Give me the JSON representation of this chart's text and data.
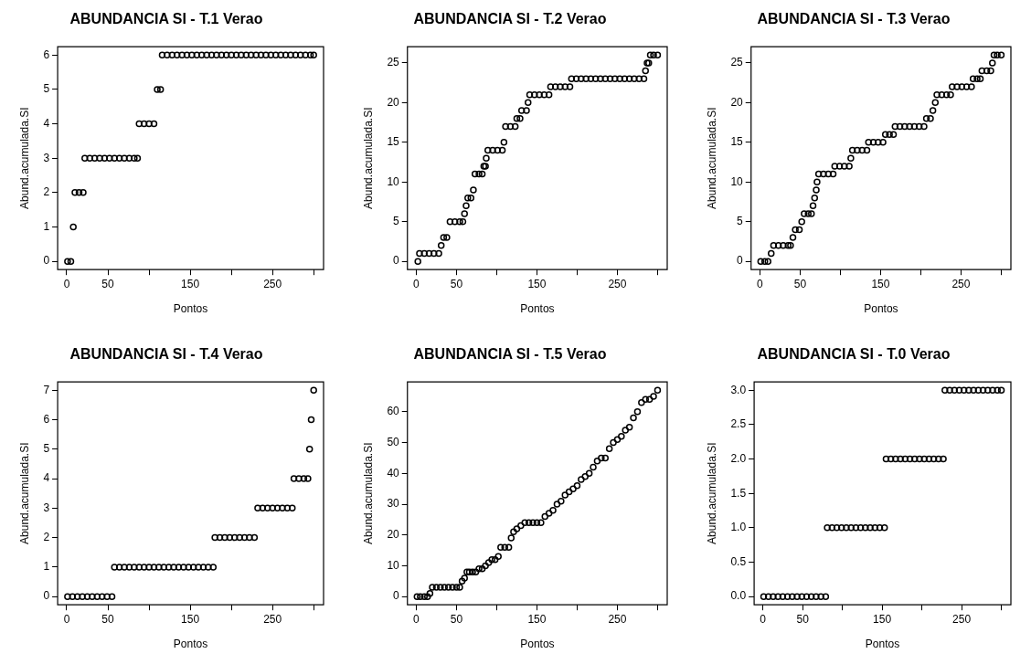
{
  "chart_data": [
    {
      "type": "scatter",
      "title": "ABUNDANCIA SI - T.1 Verao",
      "xlabel": "Pontos",
      "ylabel": "Abund.acumulada.SI",
      "marker": "circle",
      "grid": false,
      "xlim": [
        -11,
        312
      ],
      "xticks": [
        0,
        50,
        {
          "value": 100,
          "label": null
        },
        150,
        {
          "value": 200,
          "label": null
        },
        250,
        {
          "value": 300,
          "label": null
        }
      ],
      "ylim": [
        -0.24,
        6.24
      ],
      "yticks": [
        0,
        1,
        2,
        3,
        4,
        5,
        6
      ],
      "series": [
        {
          "color": "#000000",
          "x": [
            1,
            5,
            8,
            10,
            15,
            20,
            22,
            28,
            34,
            40,
            46,
            52,
            58,
            64,
            70,
            76,
            82,
            86,
            88,
            94,
            100,
            106,
            110,
            114,
            116,
            122,
            128,
            134,
            140,
            146,
            152,
            158,
            164,
            170,
            176,
            182,
            188,
            194,
            200,
            206,
            212,
            218,
            224,
            230,
            236,
            242,
            248,
            254,
            260,
            266,
            272,
            278,
            284,
            290,
            296,
            300
          ],
          "values": [
            0,
            0,
            1,
            2,
            2,
            2,
            3,
            3,
            3,
            3,
            3,
            3,
            3,
            3,
            3,
            3,
            3,
            3,
            4,
            4,
            4,
            4,
            5,
            5,
            6,
            6,
            6,
            6,
            6,
            6,
            6,
            6,
            6,
            6,
            6,
            6,
            6,
            6,
            6,
            6,
            6,
            6,
            6,
            6,
            6,
            6,
            6,
            6,
            6,
            6,
            6,
            6,
            6,
            6,
            6,
            6
          ]
        }
      ]
    },
    {
      "type": "scatter",
      "title": "ABUNDANCIA SI - T.2 Verao",
      "xlabel": "Pontos",
      "ylabel": "Abund.acumulada.SI",
      "marker": "circle",
      "grid": false,
      "xlim": [
        -11,
        312
      ],
      "xticks": [
        0,
        50,
        {
          "value": 100,
          "label": null
        },
        150,
        {
          "value": 200,
          "label": null
        },
        250,
        {
          "value": 300,
          "label": null
        }
      ],
      "ylim": [
        -1.04,
        27.04
      ],
      "yticks": [
        0,
        5,
        10,
        15,
        20,
        25
      ],
      "series": [
        {
          "color": "#000000",
          "x": [
            2,
            4,
            10,
            16,
            22,
            28,
            31,
            34,
            38,
            42,
            48,
            54,
            58,
            60,
            62,
            64,
            68,
            71,
            73,
            78,
            82,
            84,
            86,
            87,
            89,
            95,
            101,
            107,
            109,
            111,
            117,
            123,
            125,
            129,
            131,
            137,
            139,
            141,
            147,
            153,
            159,
            165,
            167,
            173,
            179,
            185,
            191,
            193,
            199,
            205,
            211,
            217,
            223,
            229,
            235,
            241,
            247,
            253,
            259,
            265,
            271,
            277,
            283,
            285,
            287,
            289,
            291,
            295,
            300
          ],
          "values": [
            0,
            1,
            1,
            1,
            1,
            1,
            2,
            3,
            3,
            5,
            5,
            5,
            5,
            6,
            7,
            8,
            8,
            9,
            11,
            11,
            11,
            12,
            12,
            13,
            14,
            14,
            14,
            14,
            15,
            17,
            17,
            17,
            18,
            18,
            19,
            19,
            20,
            21,
            21,
            21,
            21,
            21,
            22,
            22,
            22,
            22,
            22,
            23,
            23,
            23,
            23,
            23,
            23,
            23,
            23,
            23,
            23,
            23,
            23,
            23,
            23,
            23,
            23,
            24,
            25,
            25,
            26,
            26,
            26
          ]
        }
      ]
    },
    {
      "type": "scatter",
      "title": "ABUNDANCIA SI - T.3 Verao",
      "xlabel": "Pontos",
      "ylabel": "Abund.acumulada.SI",
      "marker": "circle",
      "grid": false,
      "xlim": [
        -11,
        312
      ],
      "xticks": [
        0,
        50,
        {
          "value": 100,
          "label": null
        },
        150,
        {
          "value": 200,
          "label": null
        },
        250,
        {
          "value": 300,
          "label": null
        }
      ],
      "ylim": [
        -1.04,
        27.04
      ],
      "yticks": [
        0,
        5,
        10,
        15,
        20,
        25
      ],
      "series": [
        {
          "color": "#000000",
          "x": [
            1,
            6,
            10,
            14,
            17,
            23,
            29,
            35,
            38,
            41,
            44,
            49,
            52,
            55,
            60,
            64,
            66,
            68,
            70,
            71,
            73,
            79,
            85,
            91,
            93,
            99,
            105,
            111,
            113,
            115,
            121,
            127,
            133,
            135,
            141,
            147,
            153,
            156,
            161,
            166,
            168,
            174,
            180,
            186,
            192,
            198,
            204,
            207,
            212,
            215,
            218,
            220,
            226,
            232,
            237,
            239,
            245,
            251,
            257,
            263,
            265,
            270,
            274,
            276,
            282,
            287,
            289,
            291,
            295,
            300
          ],
          "values": [
            0,
            0,
            0,
            1,
            2,
            2,
            2,
            2,
            2,
            3,
            4,
            4,
            5,
            6,
            6,
            6,
            7,
            8,
            9,
            10,
            11,
            11,
            11,
            11,
            12,
            12,
            12,
            12,
            13,
            14,
            14,
            14,
            14,
            15,
            15,
            15,
            15,
            16,
            16,
            16,
            17,
            17,
            17,
            17,
            17,
            17,
            17,
            18,
            18,
            19,
            20,
            21,
            21,
            21,
            21,
            22,
            22,
            22,
            22,
            22,
            23,
            23,
            23,
            24,
            24,
            24,
            25,
            26,
            26,
            26
          ]
        }
      ]
    },
    {
      "type": "scatter",
      "title": "ABUNDANCIA SI - T.4 Verao",
      "xlabel": "Pontos",
      "ylabel": "Abund.acumulada.SI",
      "marker": "circle",
      "grid": false,
      "xlim": [
        -11,
        312
      ],
      "xticks": [
        0,
        50,
        {
          "value": 100,
          "label": null
        },
        150,
        {
          "value": 200,
          "label": null
        },
        250,
        {
          "value": 300,
          "label": null
        }
      ],
      "ylim": [
        -0.28,
        7.28
      ],
      "yticks": [
        0,
        1,
        2,
        3,
        4,
        5,
        6,
        7
      ],
      "series": [
        {
          "color": "#000000",
          "x": [
            1,
            7,
            13,
            19,
            25,
            31,
            37,
            43,
            49,
            55,
            58,
            64,
            70,
            76,
            82,
            88,
            94,
            100,
            106,
            112,
            118,
            124,
            130,
            136,
            142,
            148,
            154,
            160,
            166,
            172,
            178,
            180,
            186,
            192,
            198,
            204,
            210,
            216,
            222,
            228,
            232,
            238,
            244,
            250,
            256,
            262,
            268,
            274,
            276,
            282,
            288,
            293,
            295,
            297,
            300
          ],
          "values": [
            0,
            0,
            0,
            0,
            0,
            0,
            0,
            0,
            0,
            0,
            1,
            1,
            1,
            1,
            1,
            1,
            1,
            1,
            1,
            1,
            1,
            1,
            1,
            1,
            1,
            1,
            1,
            1,
            1,
            1,
            1,
            2,
            2,
            2,
            2,
            2,
            2,
            2,
            2,
            2,
            3,
            3,
            3,
            3,
            3,
            3,
            3,
            3,
            4,
            4,
            4,
            4,
            5,
            6,
            7
          ]
        }
      ]
    },
    {
      "type": "scatter",
      "title": "ABUNDANCIA SI - T.5 Verao",
      "xlabel": "Pontos",
      "ylabel": "Abund.acumulada.SI",
      "marker": "circle",
      "grid": false,
      "xlim": [
        -11,
        312
      ],
      "xticks": [
        0,
        50,
        {
          "value": 100,
          "label": null
        },
        150,
        {
          "value": 200,
          "label": null
        },
        250,
        {
          "value": 300,
          "label": null
        }
      ],
      "ylim": [
        -2.68,
        69.68
      ],
      "yticks": [
        0,
        10,
        20,
        30,
        40,
        50,
        60
      ],
      "series": [
        {
          "color": "#000000",
          "x": [
            1,
            5,
            10,
            14,
            17,
            20,
            25,
            30,
            35,
            40,
            45,
            50,
            54,
            57,
            60,
            63,
            66,
            70,
            74,
            78,
            82,
            86,
            90,
            94,
            98,
            102,
            105,
            110,
            115,
            118,
            121,
            125,
            130,
            135,
            140,
            145,
            150,
            155,
            160,
            165,
            170,
            175,
            180,
            185,
            190,
            195,
            200,
            205,
            210,
            215,
            220,
            225,
            230,
            235,
            240,
            245,
            250,
            255,
            260,
            265,
            270,
            275,
            280,
            285,
            290,
            295,
            300
          ],
          "values": [
            0,
            0,
            0,
            0,
            1,
            3,
            3,
            3,
            3,
            3,
            3,
            3,
            3,
            5,
            6,
            8,
            8,
            8,
            8,
            9,
            9,
            10,
            11,
            12,
            12,
            13,
            16,
            16,
            16,
            19,
            21,
            22,
            23,
            24,
            24,
            24,
            24,
            24,
            26,
            27,
            28,
            30,
            31,
            33,
            34,
            35,
            36,
            38,
            39,
            40,
            42,
            44,
            45,
            45,
            48,
            50,
            51,
            52,
            54,
            55,
            58,
            60,
            63,
            64,
            64,
            65,
            67
          ]
        }
      ]
    },
    {
      "type": "scatter",
      "title": "ABUNDANCIA SI - T.0 Verao",
      "xlabel": "Pontos",
      "ylabel": "Abund.acumulada.SI",
      "marker": "circle",
      "grid": false,
      "xlim": [
        -11,
        312
      ],
      "xticks": [
        0,
        50,
        {
          "value": 100,
          "label": null
        },
        150,
        {
          "value": 200,
          "label": null
        },
        250,
        {
          "value": 300,
          "label": null
        }
      ],
      "ylim": [
        -0.12,
        3.12
      ],
      "yticks": [
        {
          "value": 0,
          "label": "0.0"
        },
        {
          "value": 0.5,
          "label": "0.5"
        },
        {
          "value": 1,
          "label": "1.0"
        },
        {
          "value": 1.5,
          "label": "1.5"
        },
        {
          "value": 2,
          "label": "2.0"
        },
        {
          "value": 2.5,
          "label": "2.5"
        },
        {
          "value": 3,
          "label": "3.0"
        }
      ],
      "series": [
        {
          "color": "#000000",
          "x": [
            1,
            7,
            13,
            19,
            25,
            31,
            37,
            43,
            49,
            55,
            61,
            67,
            73,
            79,
            81,
            87,
            93,
            99,
            105,
            111,
            117,
            123,
            129,
            135,
            141,
            147,
            153,
            155,
            161,
            167,
            173,
            179,
            185,
            191,
            197,
            203,
            209,
            215,
            221,
            227,
            229,
            235,
            241,
            247,
            253,
            259,
            265,
            271,
            277,
            283,
            289,
            295,
            300
          ],
          "values": [
            0,
            0,
            0,
            0,
            0,
            0,
            0,
            0,
            0,
            0,
            0,
            0,
            0,
            0,
            1,
            1,
            1,
            1,
            1,
            1,
            1,
            1,
            1,
            1,
            1,
            1,
            1,
            2,
            2,
            2,
            2,
            2,
            2,
            2,
            2,
            2,
            2,
            2,
            2,
            2,
            3,
            3,
            3,
            3,
            3,
            3,
            3,
            3,
            3,
            3,
            3,
            3,
            3
          ]
        }
      ]
    }
  ]
}
